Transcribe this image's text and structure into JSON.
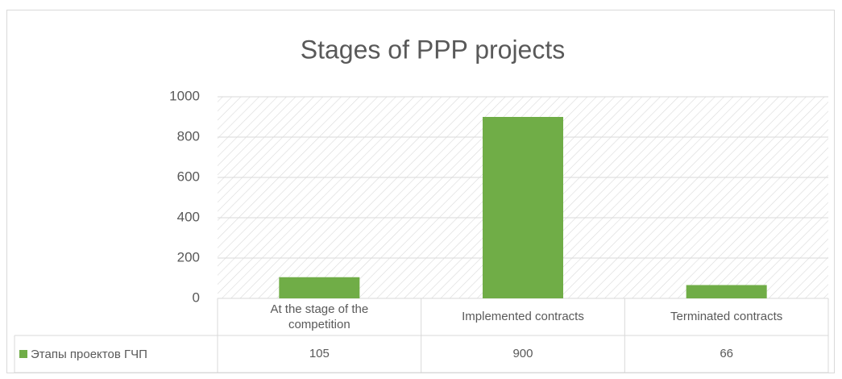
{
  "chart_data": {
    "type": "bar",
    "title": "Stages of PPP projects",
    "categories": [
      "At the stage of the competition",
      "Implemented contracts",
      "Terminated contracts"
    ],
    "series": [
      {
        "name": "Этапы проектов ГЧП",
        "color": "#70ad47",
        "values": [
          105,
          900,
          66
        ]
      }
    ],
    "ylim": [
      0,
      1000
    ],
    "yticks": [
      0,
      200,
      400,
      600,
      800,
      1000
    ],
    "grid": true,
    "data_table": true
  }
}
